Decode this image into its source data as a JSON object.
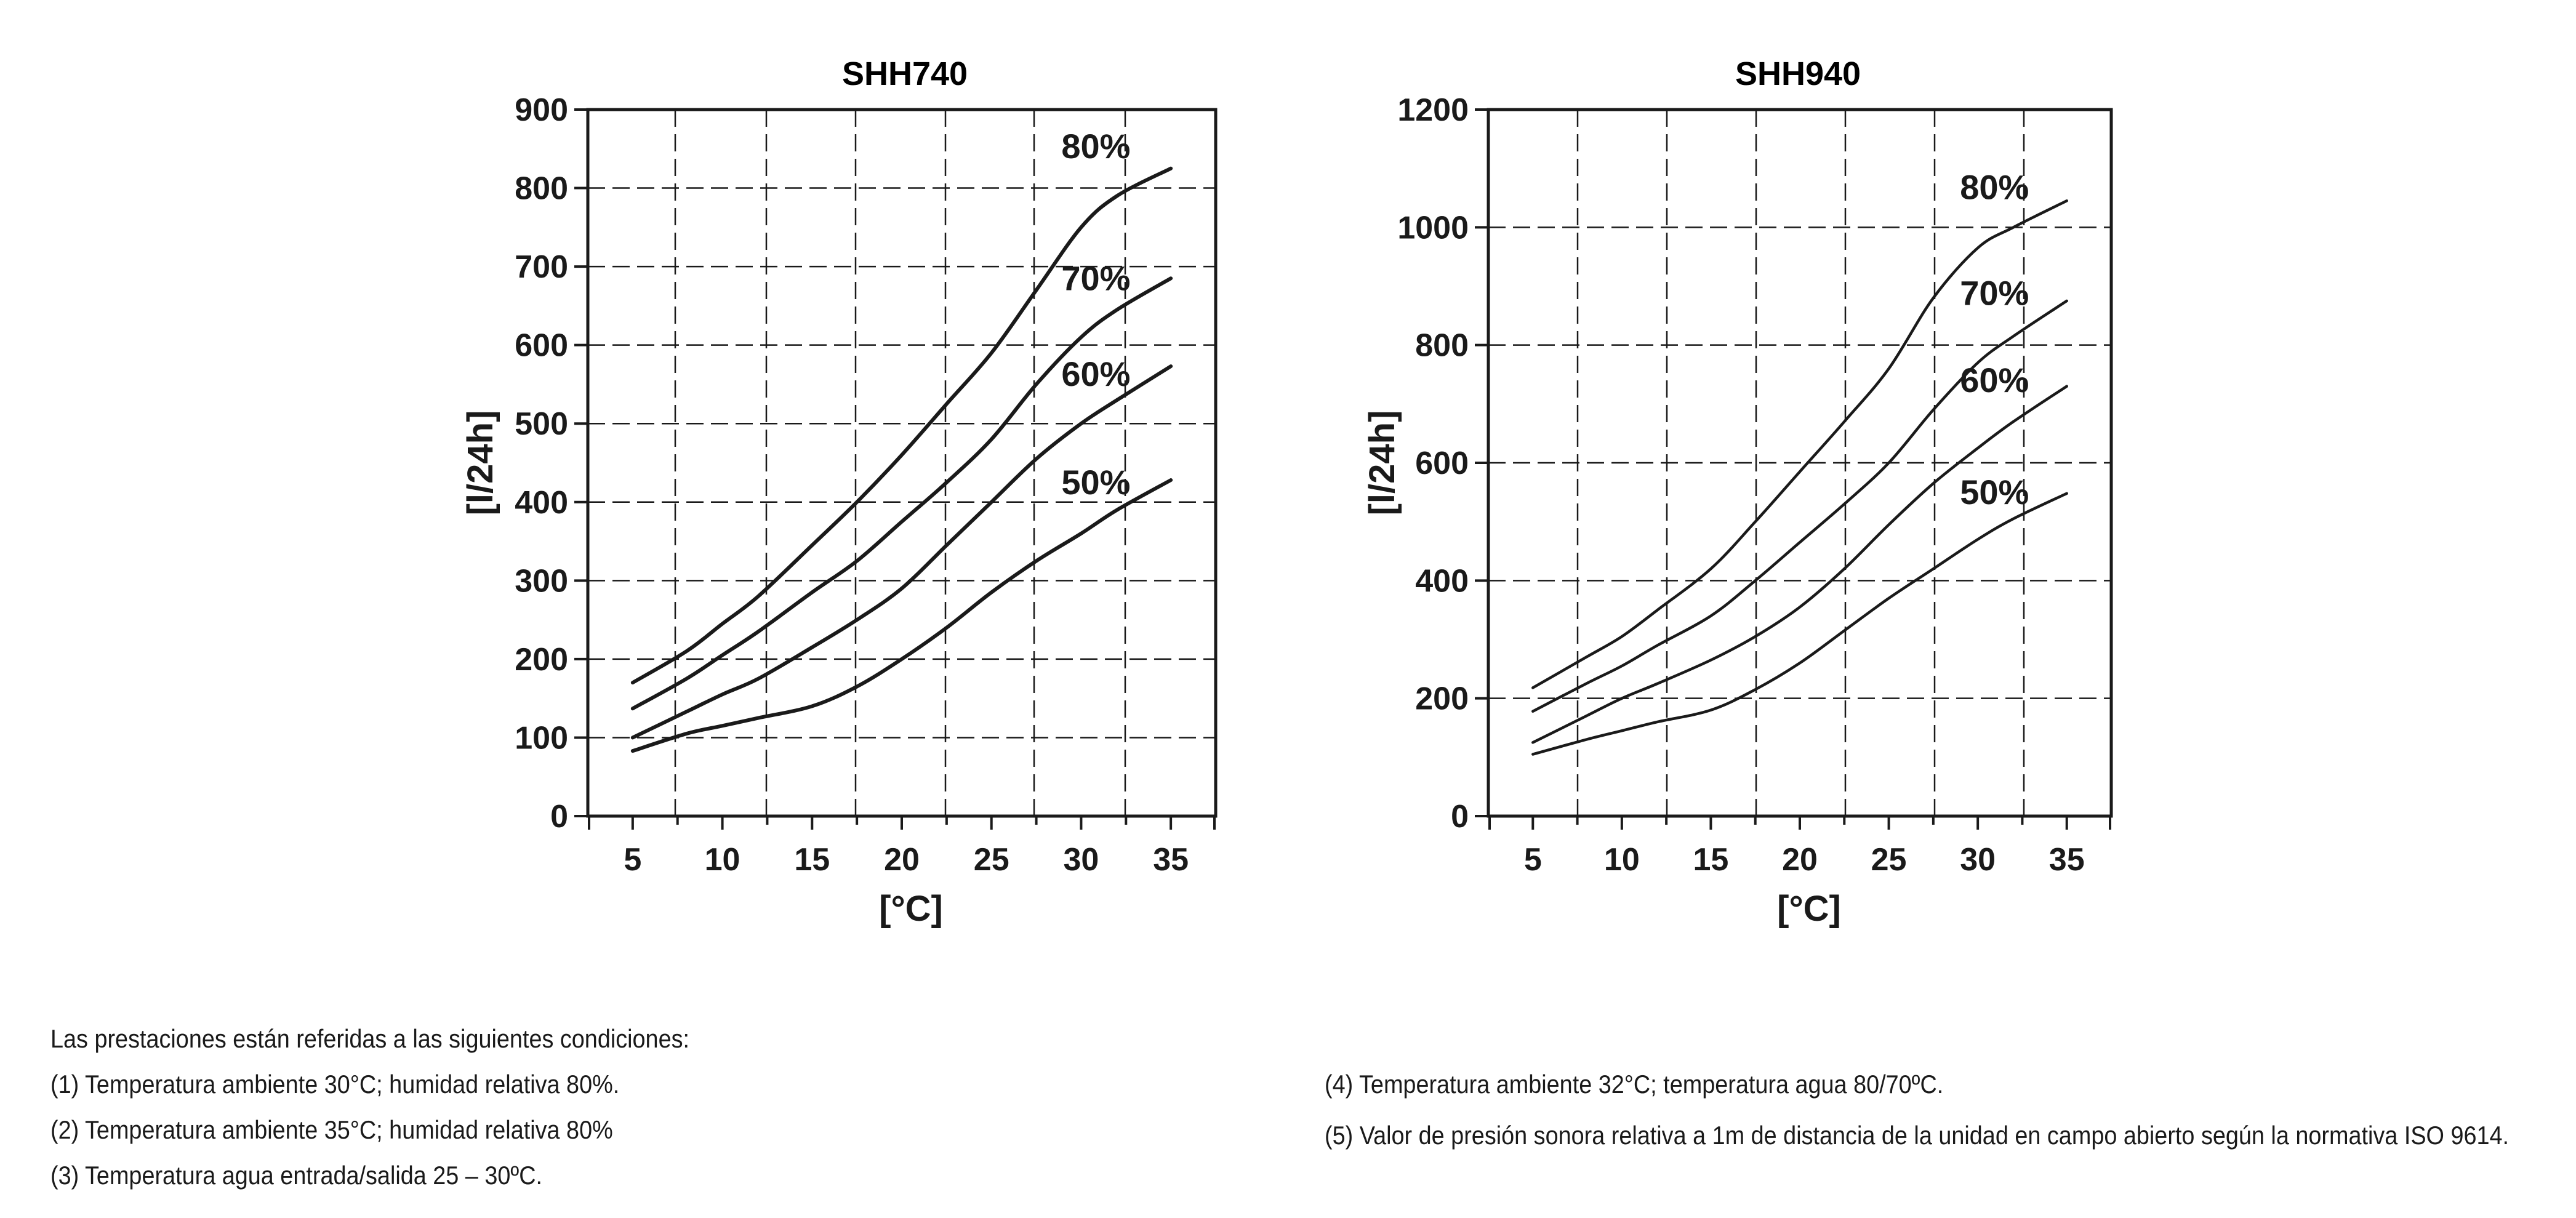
{
  "chart_data": [
    {
      "type": "line",
      "title": "SHH740",
      "xlabel": "[°C]",
      "ylabel": "[l/24h]",
      "xlim": [
        2.5,
        37.5
      ],
      "ylim": [
        0,
        900
      ],
      "xticks": [
        5,
        10,
        15,
        20,
        25,
        30,
        35
      ],
      "yticks": [
        0,
        100,
        200,
        300,
        400,
        500,
        600,
        700,
        800,
        900
      ],
      "grid": true,
      "series": [
        {
          "name": "80%",
          "x": [
            5,
            8,
            10,
            12,
            15,
            17.5,
            20,
            22.5,
            25,
            27.5,
            30,
            32,
            35
          ],
          "y": [
            170,
            210,
            245,
            280,
            345,
            400,
            460,
            525,
            590,
            670,
            750,
            790,
            825
          ]
        },
        {
          "name": "70%",
          "x": [
            5,
            8,
            10,
            12,
            15,
            17.5,
            20,
            22.5,
            25,
            27.5,
            30,
            32,
            35
          ],
          "y": [
            137,
            175,
            205,
            235,
            285,
            325,
            375,
            425,
            480,
            550,
            610,
            645,
            685
          ]
        },
        {
          "name": "60%",
          "x": [
            5,
            8,
            10,
            12,
            15,
            17.5,
            20,
            22.5,
            25,
            27.5,
            30,
            32,
            35
          ],
          "y": [
            100,
            133,
            155,
            175,
            215,
            250,
            290,
            345,
            400,
            455,
            500,
            530,
            573
          ]
        },
        {
          "name": "50%",
          "x": [
            5,
            8,
            10,
            12,
            15,
            17.5,
            20,
            22.5,
            25,
            27.5,
            30,
            32,
            35
          ],
          "y": [
            83,
            105,
            115,
            125,
            140,
            165,
            200,
            240,
            285,
            325,
            360,
            390,
            428
          ]
        }
      ]
    },
    {
      "type": "line",
      "title": "SHH940",
      "xlabel": "[°C]",
      "ylabel": "[l/24h]",
      "xlim": [
        2.5,
        37.5
      ],
      "ylim": [
        0,
        1200
      ],
      "xticks": [
        5,
        10,
        15,
        20,
        25,
        30,
        35
      ],
      "yticks": [
        0,
        200,
        400,
        600,
        800,
        1000,
        1200
      ],
      "grid": true,
      "series": [
        {
          "name": "80%",
          "x": [
            5,
            8,
            10,
            12,
            15,
            17.5,
            20,
            22.5,
            25,
            27.5,
            30,
            32,
            35
          ],
          "y": [
            218,
            270,
            305,
            350,
            420,
            500,
            585,
            670,
            760,
            880,
            965,
            1000,
            1045
          ]
        },
        {
          "name": "70%",
          "x": [
            5,
            8,
            10,
            12,
            15,
            17.5,
            20,
            22.5,
            25,
            27.5,
            30,
            32,
            35
          ],
          "y": [
            178,
            225,
            255,
            290,
            340,
            400,
            465,
            530,
            600,
            690,
            770,
            815,
            875
          ]
        },
        {
          "name": "60%",
          "x": [
            5,
            8,
            10,
            12,
            15,
            17.5,
            20,
            22.5,
            25,
            27.5,
            30,
            32,
            35
          ],
          "y": [
            125,
            170,
            200,
            225,
            265,
            305,
            355,
            420,
            495,
            565,
            625,
            670,
            730
          ]
        },
        {
          "name": "50%",
          "x": [
            5,
            8,
            10,
            12,
            15,
            17.5,
            20,
            22.5,
            25,
            27.5,
            30,
            32,
            35
          ],
          "y": [
            105,
            130,
            145,
            160,
            180,
            215,
            260,
            315,
            370,
            420,
            470,
            505,
            548
          ]
        }
      ]
    }
  ],
  "notes": {
    "intro": "Las prestaciones están referidas  a las  siguientes condiciones:",
    "left": [
      "(1) Temperatura ambiente 30°C; humidad relativa 80%.",
      "(2) Temperatura ambiente 35°C; humidad relativa 80%",
      "(3) Temperatura agua entrada/salida 25 – 30ºC."
    ],
    "right": [
      "(4) Temperatura ambiente 32°C; temperatura agua 80/70ºC.",
      "(5) Valor de presión sonora relativa a 1m de distancia de la unidad en campo abierto según la normativa ISO 9614."
    ]
  }
}
